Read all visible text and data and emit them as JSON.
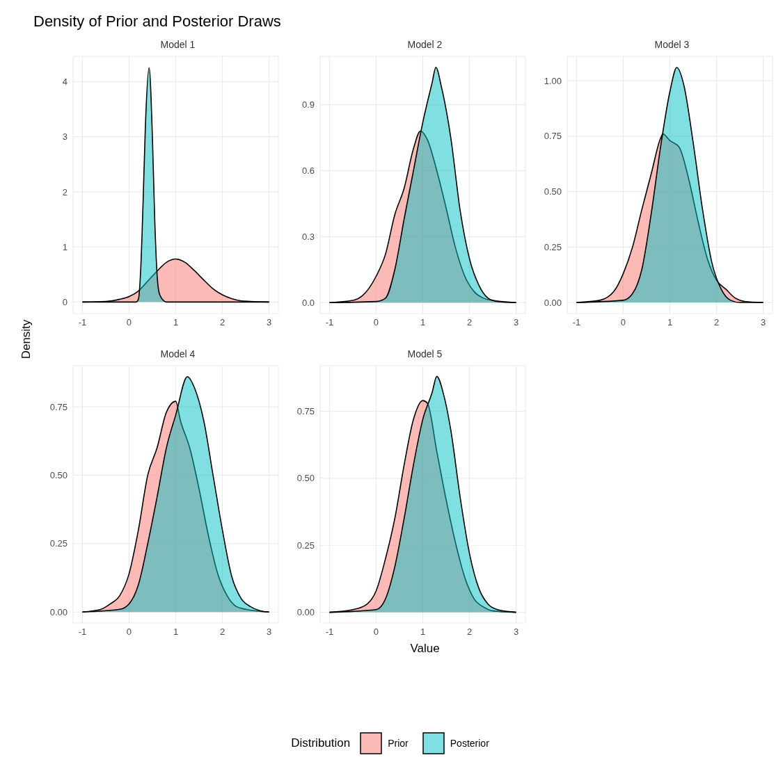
{
  "chart_data": [
    {
      "type": "area",
      "title": "Model 1",
      "annotations": [
        "Density of Prior and Posterior Draws"
      ],
      "ylabel": "Density",
      "legend": "bottom",
      "legend_title": "Distribution",
      "grid": true,
      "xlim": [
        -1.2,
        3.2
      ],
      "xticks": [
        -1,
        0,
        1,
        2,
        3
      ],
      "ylim": [
        -0.21,
        4.46
      ],
      "yticks": [
        0,
        1,
        2,
        3,
        4
      ],
      "series": [
        {
          "name": "Prior",
          "color": "#f8766d",
          "x": [
            -1,
            -0.5,
            -0.2,
            0,
            0.2,
            0.4,
            0.6,
            0.8,
            1,
            1.2,
            1.4,
            1.6,
            1.8,
            2,
            2.2,
            2.4,
            2.6,
            3
          ],
          "values": [
            0,
            0.01,
            0.05,
            0.1,
            0.2,
            0.38,
            0.56,
            0.72,
            0.78,
            0.72,
            0.57,
            0.4,
            0.24,
            0.13,
            0.06,
            0.02,
            0.01,
            0
          ]
        },
        {
          "name": "Posterior",
          "color": "#00bfc4",
          "x": [
            -1,
            0.15,
            0.2,
            0.25,
            0.3,
            0.35,
            0.43,
            0.5,
            0.55,
            0.6,
            0.65,
            0.75,
            0.8,
            3
          ],
          "values": [
            0,
            0,
            0.05,
            0.6,
            1.8,
            3.2,
            4.25,
            3,
            1.5,
            0.5,
            0.15,
            0.02,
            0,
            0
          ]
        }
      ]
    },
    {
      "type": "area",
      "title": "Model 2",
      "grid": true,
      "xlim": [
        -1.2,
        3.2
      ],
      "xticks": [
        -1,
        0,
        1,
        2,
        3
      ],
      "ylim": [
        -0.05,
        1.12
      ],
      "yticks": [
        {
          "value": 0,
          "label": "0.0"
        },
        0.3,
        0.6,
        0.9
      ],
      "series": [
        {
          "color": "#f8766d",
          "x": [
            -1,
            -0.5,
            -0.3,
            0,
            0.2,
            0.4,
            0.6,
            0.8,
            0.95,
            1.1,
            1.3,
            1.5,
            1.7,
            1.9,
            2.1,
            2.3,
            2.5,
            3
          ],
          "values": [
            0,
            0.01,
            0.03,
            0.12,
            0.22,
            0.4,
            0.52,
            0.7,
            0.78,
            0.74,
            0.6,
            0.43,
            0.25,
            0.12,
            0.05,
            0.02,
            0.01,
            0
          ]
        },
        {
          "color": "#00bfc4",
          "x": [
            -1,
            0,
            0.2,
            0.4,
            0.6,
            0.8,
            1,
            1.2,
            1.28,
            1.4,
            1.6,
            1.8,
            2,
            2.2,
            2.4,
            2.6,
            3
          ],
          "values": [
            0,
            0.005,
            0.02,
            0.15,
            0.38,
            0.6,
            0.82,
            1,
            1.07,
            0.98,
            0.75,
            0.42,
            0.2,
            0.08,
            0.02,
            0.005,
            0
          ]
        }
      ]
    },
    {
      "type": "area",
      "title": "Model 3",
      "grid": true,
      "xlim": [
        -1.2,
        3.2
      ],
      "xticks": [
        -1,
        0,
        1,
        2,
        3
      ],
      "ylim": [
        -0.05,
        1.11
      ],
      "yticks": [
        {
          "value": 0,
          "label": "0.00"
        },
        0.25,
        {
          "value": 0.5,
          "label": "0.50"
        },
        0.75,
        {
          "value": 1,
          "label": "1.00"
        }
      ],
      "series": [
        {
          "color": "#f8766d",
          "x": [
            -1,
            -0.5,
            -0.2,
            0,
            0.2,
            0.4,
            0.6,
            0.8,
            0.85,
            1,
            1.2,
            1.4,
            1.6,
            1.8,
            2,
            2.2,
            2.4,
            2.6,
            3
          ],
          "values": [
            0,
            0.01,
            0.05,
            0.13,
            0.25,
            0.42,
            0.58,
            0.74,
            0.76,
            0.73,
            0.7,
            0.56,
            0.37,
            0.2,
            0.1,
            0.06,
            0.02,
            0.005,
            0
          ]
        },
        {
          "color": "#00bfc4",
          "x": [
            -1,
            0,
            0.2,
            0.4,
            0.6,
            0.8,
            1,
            1.15,
            1.3,
            1.5,
            1.7,
            1.9,
            2.1,
            2.3,
            2.5,
            3
          ],
          "values": [
            0,
            0.01,
            0.04,
            0.15,
            0.4,
            0.7,
            0.95,
            1.06,
            0.98,
            0.72,
            0.42,
            0.18,
            0.06,
            0.01,
            0,
            0
          ]
        }
      ]
    },
    {
      "type": "area",
      "title": "Model 4",
      "grid": true,
      "xlim": [
        -1.2,
        3.2
      ],
      "xticks": [
        -1,
        0,
        1,
        2,
        3
      ],
      "ylim": [
        -0.04,
        0.9
      ],
      "yticks": [
        {
          "value": 0,
          "label": "0.00"
        },
        0.25,
        {
          "value": 0.5,
          "label": "0.50"
        },
        0.75
      ],
      "series": [
        {
          "color": "#f8766d",
          "x": [
            -1,
            -0.6,
            -0.4,
            -0.2,
            0,
            0.2,
            0.4,
            0.6,
            0.8,
            1,
            1.1,
            1.3,
            1.5,
            1.7,
            1.9,
            2.1,
            2.3,
            2.5,
            3
          ],
          "values": [
            0,
            0.01,
            0.03,
            0.06,
            0.14,
            0.3,
            0.5,
            0.6,
            0.73,
            0.77,
            0.7,
            0.6,
            0.45,
            0.28,
            0.14,
            0.06,
            0.02,
            0.01,
            0
          ]
        },
        {
          "color": "#00bfc4",
          "x": [
            -1,
            -0.2,
            0,
            0.2,
            0.4,
            0.6,
            0.8,
            1,
            1.25,
            1.4,
            1.6,
            1.8,
            2,
            2.2,
            2.4,
            2.6,
            2.8,
            3
          ],
          "values": [
            0,
            0.01,
            0.03,
            0.1,
            0.25,
            0.42,
            0.6,
            0.72,
            0.86,
            0.82,
            0.7,
            0.5,
            0.3,
            0.13,
            0.05,
            0.02,
            0.005,
            0
          ]
        }
      ]
    },
    {
      "type": "area",
      "title": "Model 5",
      "xlabel": "Value",
      "grid": true,
      "xlim": [
        -1.2,
        3.2
      ],
      "xticks": [
        -1,
        0,
        1,
        2,
        3
      ],
      "ylim": [
        -0.04,
        0.92
      ],
      "yticks": [
        {
          "value": 0,
          "label": "0.00"
        },
        0.25,
        {
          "value": 0.5,
          "label": "0.50"
        },
        0.75
      ],
      "series": [
        {
          "color": "#f8766d",
          "x": [
            -1,
            -0.5,
            -0.2,
            0,
            0.2,
            0.4,
            0.6,
            0.8,
            1,
            1.1,
            1.3,
            1.5,
            1.7,
            1.9,
            2.1,
            2.3,
            2.5,
            3
          ],
          "values": [
            0,
            0.01,
            0.03,
            0.08,
            0.2,
            0.35,
            0.55,
            0.72,
            0.79,
            0.78,
            0.6,
            0.42,
            0.26,
            0.13,
            0.05,
            0.02,
            0.005,
            0
          ]
        },
        {
          "color": "#00bfc4",
          "x": [
            -1,
            0,
            0.2,
            0.4,
            0.6,
            0.8,
            1,
            1.2,
            1.3,
            1.45,
            1.6,
            1.8,
            2,
            2.2,
            2.4,
            2.6,
            3
          ],
          "values": [
            0,
            0.01,
            0.05,
            0.17,
            0.35,
            0.55,
            0.72,
            0.82,
            0.88,
            0.81,
            0.68,
            0.43,
            0.22,
            0.09,
            0.03,
            0.01,
            0
          ]
        }
      ]
    }
  ]
}
